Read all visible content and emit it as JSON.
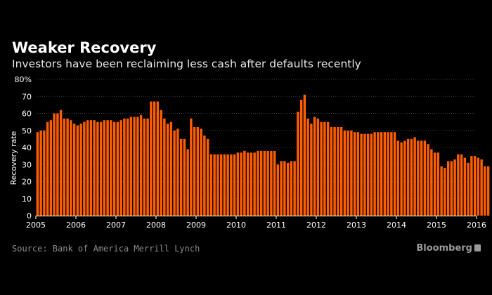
{
  "header": {
    "title": "Weaker Recovery",
    "subtitle": "Investors have been reclaiming less cash after defaults recently"
  },
  "footer": {
    "source": "Source: Bank of America Merrill Lynch",
    "brand": "Bloomberg"
  },
  "colors": {
    "background": "#000000",
    "bar": "#ff5f00",
    "gridline": "#3a3a3a",
    "text": "#ffffff"
  },
  "chart_data": {
    "type": "bar",
    "title": "Weaker Recovery",
    "subtitle": "Investors have been reclaiming less cash after defaults recently",
    "xlabel": "",
    "ylabel": "Recovery rate",
    "ylim": [
      0,
      80
    ],
    "y_ticks": [
      "0",
      "10",
      "20",
      "30",
      "40",
      "50",
      "60",
      "70",
      "80%"
    ],
    "x_ticks": [
      "2005",
      "2006",
      "2007",
      "2008",
      "2009",
      "2010",
      "2011",
      "2012",
      "2013",
      "2014",
      "2015",
      "2016"
    ],
    "x_start": "2005-01",
    "frequency": "monthly",
    "grid": true,
    "series": [
      {
        "values": [
          49,
          50,
          50,
          55,
          56,
          60,
          60,
          62,
          57,
          57,
          56,
          54,
          53,
          54,
          55,
          56,
          56,
          56,
          55,
          55,
          56,
          56,
          56,
          55,
          55,
          56,
          57,
          57,
          58,
          58,
          58,
          59,
          57,
          57,
          67,
          67,
          67,
          62,
          57,
          54,
          55,
          50,
          51,
          45,
          45,
          39,
          57,
          52,
          52,
          51,
          47,
          45,
          36,
          36,
          36,
          36,
          36,
          36,
          36,
          36,
          37,
          37,
          38,
          37,
          37,
          37,
          38,
          38,
          38,
          38,
          38,
          38,
          30,
          32,
          32,
          31,
          32,
          32,
          61,
          68,
          71,
          57,
          54,
          58,
          57,
          55,
          55,
          55,
          52,
          52,
          52,
          52,
          50,
          50,
          50,
          49,
          49,
          48,
          48,
          48,
          48,
          49,
          49,
          49,
          49,
          49,
          49,
          49,
          44,
          43,
          44,
          45,
          45,
          46,
          44,
          44,
          44,
          42,
          39,
          37,
          37,
          29,
          28,
          32,
          32,
          33,
          36,
          36,
          34,
          31,
          35,
          35,
          34,
          33,
          29,
          29
        ]
      }
    ]
  }
}
